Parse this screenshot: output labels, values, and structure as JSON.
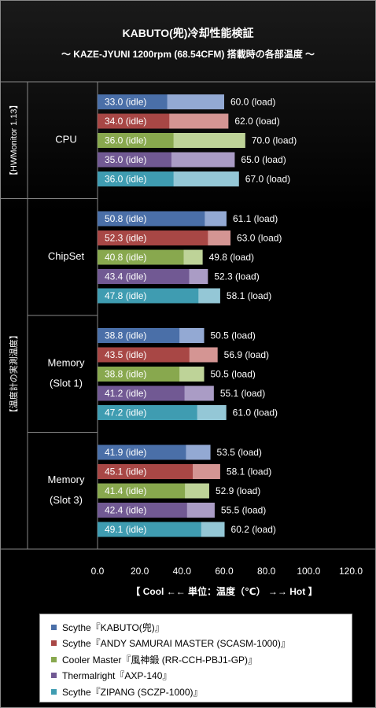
{
  "title": "KABUTO(兜)冷却性能検証",
  "subtitle": "～ KAZE-JYUNI 1200rpm (68.54CFM) 搭載時の各部温度 ～",
  "chart_data": {
    "type": "bar",
    "orientation": "horizontal",
    "stacked_overlay": true,
    "xlim": [
      0,
      120
    ],
    "x_ticks": [
      "0.0",
      "20.0",
      "40.0",
      "60.0",
      "80.0",
      "100.0",
      "120.0"
    ],
    "xlabel": "【 Cool ←← 単位：温度（℃） →→ Hot 】",
    "side_labels": [
      "【HWMonitor 1.13】",
      "【温度計の実測温度】"
    ],
    "groups": [
      {
        "label": [
          "CPU"
        ],
        "idle": [
          33.0,
          34.0,
          36.0,
          35.0,
          36.0
        ],
        "load": [
          60.0,
          62.0,
          70.0,
          65.0,
          67.0
        ]
      },
      {
        "label": [
          "ChipSet"
        ],
        "idle": [
          50.8,
          52.3,
          40.8,
          43.4,
          47.8
        ],
        "load": [
          61.1,
          63.0,
          49.8,
          52.3,
          58.1
        ]
      },
      {
        "label": [
          "Memory",
          "(Slot 1)"
        ],
        "idle": [
          38.8,
          43.5,
          38.8,
          41.2,
          47.2
        ],
        "load": [
          50.5,
          56.9,
          50.5,
          55.1,
          61.0
        ]
      },
      {
        "label": [
          "Memory",
          "(Slot 3)"
        ],
        "idle": [
          41.9,
          45.1,
          41.4,
          42.4,
          49.1
        ],
        "load": [
          53.5,
          58.1,
          52.9,
          55.5,
          60.2
        ]
      }
    ],
    "idle_suffix": " (idle)",
    "load_suffix": " (load)",
    "series": [
      {
        "name": "Scythe『KABUTO(兜)』",
        "idle_color": "#4a6fa8",
        "load_color": "#93a9d3"
      },
      {
        "name": "Scythe『ANDY SAMURAI MASTER (SCASM-1000)』",
        "idle_color": "#a84745",
        "load_color": "#d49593"
      },
      {
        "name": "Cooler Master『風神鍛 (RR-CCH-PBJ1-GP)』",
        "idle_color": "#88a84e",
        "load_color": "#bed398"
      },
      {
        "name": "Thermalright『AXP-140』",
        "idle_color": "#715993",
        "load_color": "#aa9cc5"
      },
      {
        "name": "Scythe『ZIPANG (SCZP-1000)』",
        "idle_color": "#3f9cb1",
        "load_color": "#94c7d6"
      }
    ],
    "legend_position": "bottom"
  }
}
